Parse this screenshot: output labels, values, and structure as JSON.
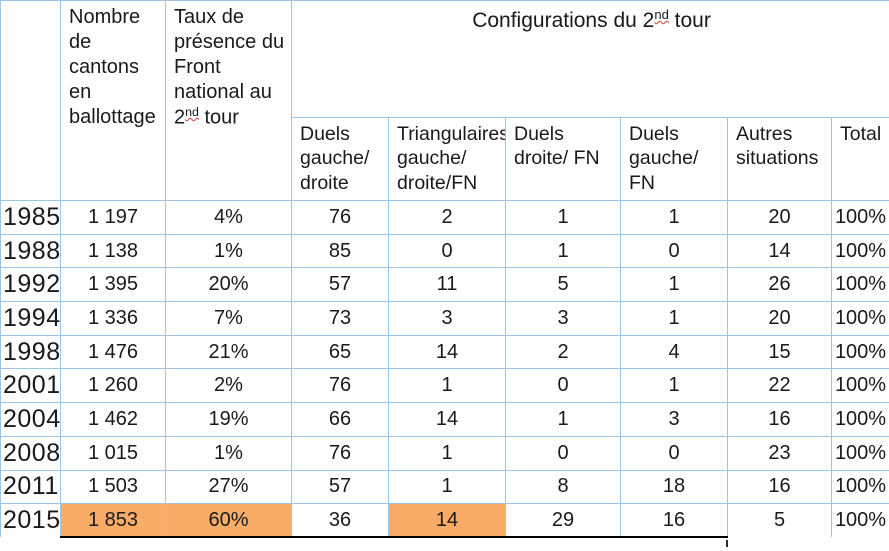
{
  "page": {
    "background": "#ffffff"
  },
  "table": {
    "border_color": "#9DC3E6",
    "highlight_color": "#F9AC67",
    "bottom_rule_color": "#000000",
    "header": {
      "col_nombre": "Nombre de cantons en ballottage",
      "col_taux": {
        "prefix": "Taux de présence du Front national au 2",
        "sup": "nd",
        "suffix": " tour"
      },
      "config": {
        "prefix": "Configurations du 2",
        "sup": "nd",
        "suffix": " tour"
      },
      "sub_columns": [
        "Duels gauche/ droite",
        "Triangulaires gauche/ droite/FN",
        "Duels droite/ FN",
        "Duels gauche/ FN",
        "Autres situations",
        "Total"
      ]
    },
    "rows": [
      {
        "year": "1985",
        "values": [
          "1 197",
          "4%",
          "76",
          "2",
          "1",
          "1",
          "20",
          "100%"
        ],
        "highlight": []
      },
      {
        "year": "1988",
        "values": [
          "1 138",
          "1%",
          "85",
          "0",
          "1",
          "0",
          "14",
          "100%"
        ],
        "highlight": []
      },
      {
        "year": "1992",
        "values": [
          "1 395",
          "20%",
          "57",
          "11",
          "5",
          "1",
          "26",
          "100%"
        ],
        "highlight": []
      },
      {
        "year": "1994",
        "values": [
          "1 336",
          "7%",
          "73",
          "3",
          "3",
          "1",
          "20",
          "100%"
        ],
        "highlight": []
      },
      {
        "year": "1998",
        "values": [
          "1 476",
          "21%",
          "65",
          "14",
          "2",
          "4",
          "15",
          "100%"
        ],
        "highlight": []
      },
      {
        "year": "2001",
        "values": [
          "1 260",
          "2%",
          "76",
          "1",
          "0",
          "1",
          "22",
          "100%"
        ],
        "highlight": []
      },
      {
        "year": "2004",
        "values": [
          "1 462",
          "19%",
          "66",
          "14",
          "1",
          "3",
          "16",
          "100%"
        ],
        "highlight": []
      },
      {
        "year": "2008",
        "values": [
          "1 015",
          "1%",
          "76",
          "1",
          "0",
          "0",
          "23",
          "100%"
        ],
        "highlight": []
      },
      {
        "year": "2011",
        "values": [
          "1 503",
          "27%",
          "57",
          "1",
          "8",
          "18",
          "16",
          "100%"
        ],
        "highlight": []
      },
      {
        "year": "2015",
        "values": [
          "1 853",
          "60%",
          "36",
          "14",
          "29",
          "16",
          "5",
          "100%"
        ],
        "highlight": [
          0,
          1,
          3
        ]
      }
    ]
  }
}
